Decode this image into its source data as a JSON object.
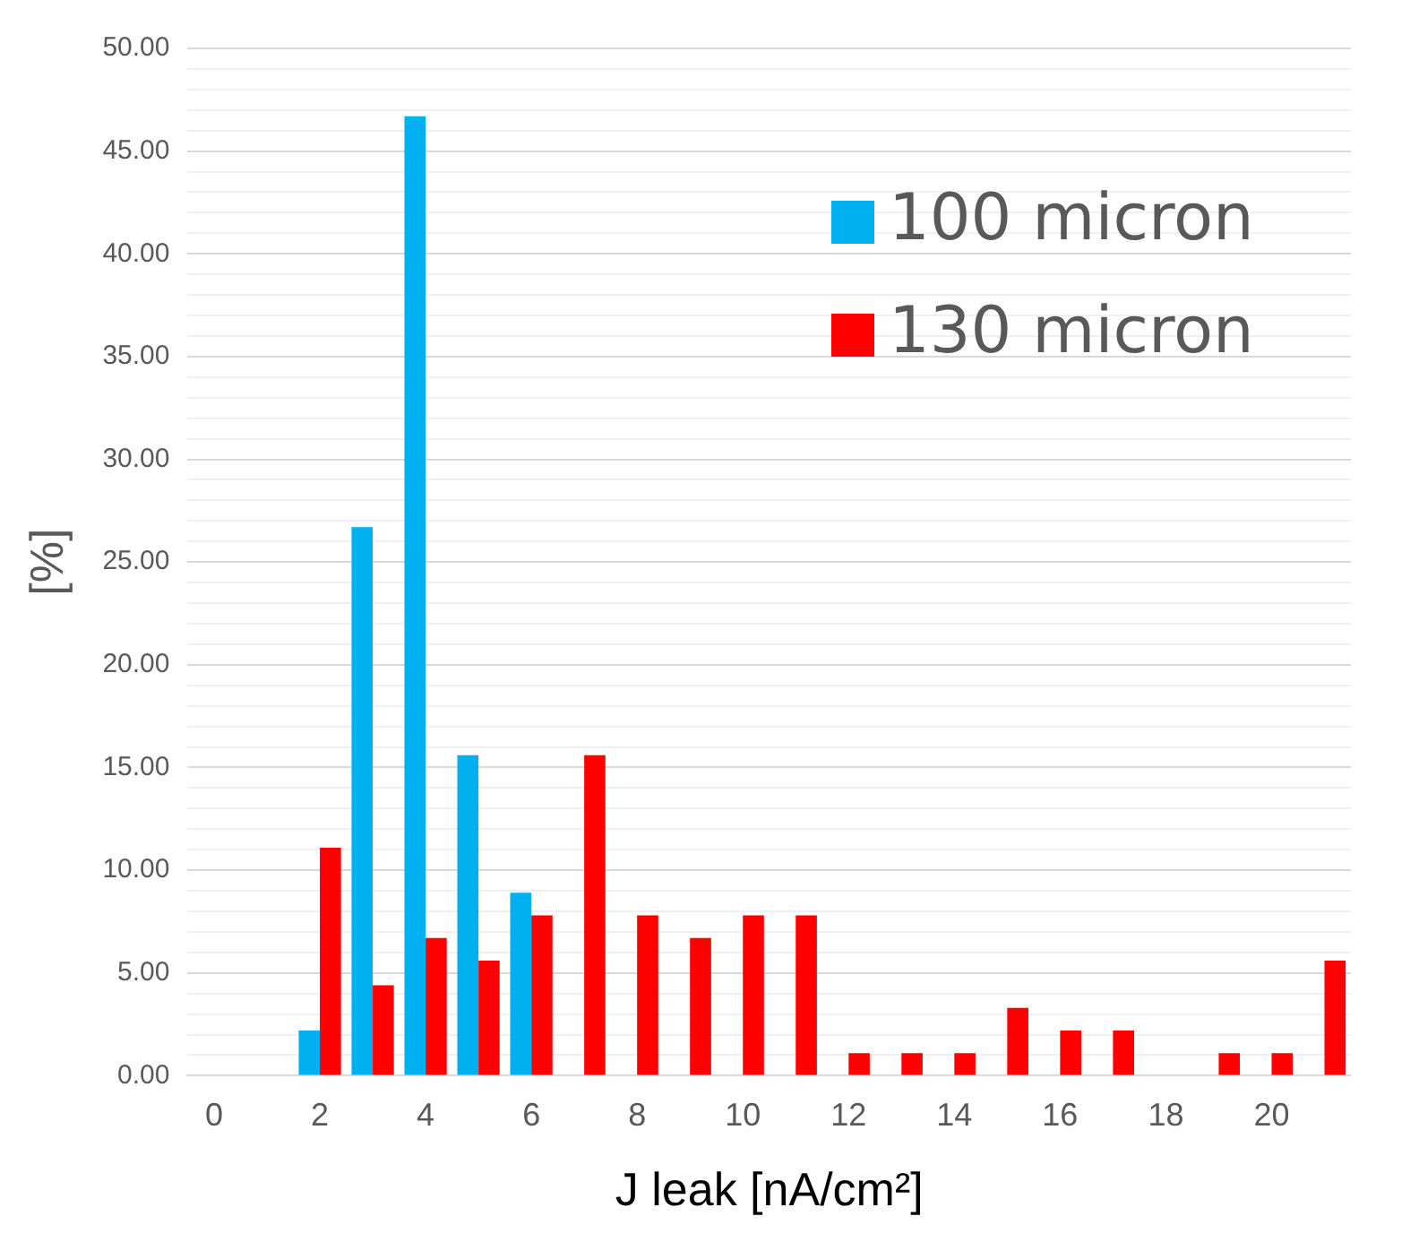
{
  "chart_data": {
    "type": "bar",
    "xlabel": "J leak [nA/cm²]",
    "ylabel": "[%]",
    "categories": [
      "0",
      null,
      "2",
      null,
      "4",
      null,
      "6",
      null,
      "8",
      null,
      "10",
      null,
      "12",
      null,
      "14",
      null,
      "16",
      null,
      "18",
      null,
      "20",
      null
    ],
    "series": [
      {
        "name": "100 micron",
        "color": "#00b0f0",
        "values": [
          0,
          0,
          2.2,
          26.7,
          46.7,
          15.6,
          8.9,
          0,
          0,
          0,
          0,
          0,
          0,
          0,
          0,
          0,
          0,
          0,
          0,
          0,
          0,
          0
        ]
      },
      {
        "name": "130 micron",
        "color": "#ff0000",
        "values": [
          0,
          0,
          11.1,
          4.4,
          6.7,
          5.6,
          7.8,
          15.6,
          7.8,
          6.7,
          7.8,
          7.8,
          1.1,
          1.1,
          1.1,
          3.3,
          2.2,
          2.2,
          0,
          1.1,
          1.1,
          5.6
        ]
      }
    ],
    "ylim": [
      0,
      50
    ],
    "yticks": [
      {
        "value": 0,
        "label": "0.00"
      },
      {
        "value": 1,
        "label": null
      },
      {
        "value": 2,
        "label": null
      },
      {
        "value": 3,
        "label": null
      },
      {
        "value": 4,
        "label": null
      },
      {
        "value": 5,
        "label": "5.00"
      },
      {
        "value": 6,
        "label": null
      },
      {
        "value": 7,
        "label": null
      },
      {
        "value": 8,
        "label": null
      },
      {
        "value": 9,
        "label": null
      },
      {
        "value": 10,
        "label": "10.00"
      },
      {
        "value": 11,
        "label": null
      },
      {
        "value": 12,
        "label": null
      },
      {
        "value": 13,
        "label": null
      },
      {
        "value": 14,
        "label": null
      },
      {
        "value": 15,
        "label": "15.00"
      },
      {
        "value": 16,
        "label": null
      },
      {
        "value": 17,
        "label": null
      },
      {
        "value": 18,
        "label": null
      },
      {
        "value": 19,
        "label": null
      },
      {
        "value": 20,
        "label": "20.00"
      },
      {
        "value": 21,
        "label": null
      },
      {
        "value": 22,
        "label": null
      },
      {
        "value": 23,
        "label": null
      },
      {
        "value": 24,
        "label": null
      },
      {
        "value": 25,
        "label": "25.00"
      },
      {
        "value": 26,
        "label": null
      },
      {
        "value": 27,
        "label": null
      },
      {
        "value": 28,
        "label": null
      },
      {
        "value": 29,
        "label": null
      },
      {
        "value": 30,
        "label": "30.00"
      },
      {
        "value": 31,
        "label": null
      },
      {
        "value": 32,
        "label": null
      },
      {
        "value": 33,
        "label": null
      },
      {
        "value": 34,
        "label": null
      },
      {
        "value": 35,
        "label": "35.00"
      },
      {
        "value": 36,
        "label": null
      },
      {
        "value": 37,
        "label": null
      },
      {
        "value": 38,
        "label": null
      },
      {
        "value": 39,
        "label": null
      },
      {
        "value": 40,
        "label": "40.00"
      },
      {
        "value": 41,
        "label": null
      },
      {
        "value": 42,
        "label": null
      },
      {
        "value": 43,
        "label": null
      },
      {
        "value": 44,
        "label": null
      },
      {
        "value": 45,
        "label": "45.00"
      },
      {
        "value": 46,
        "label": null
      },
      {
        "value": 47,
        "label": null
      },
      {
        "value": 48,
        "label": null
      },
      {
        "value": 49,
        "label": null
      },
      {
        "value": 50,
        "label": "50.00"
      }
    ],
    "grid": "y",
    "legend": "top right"
  }
}
